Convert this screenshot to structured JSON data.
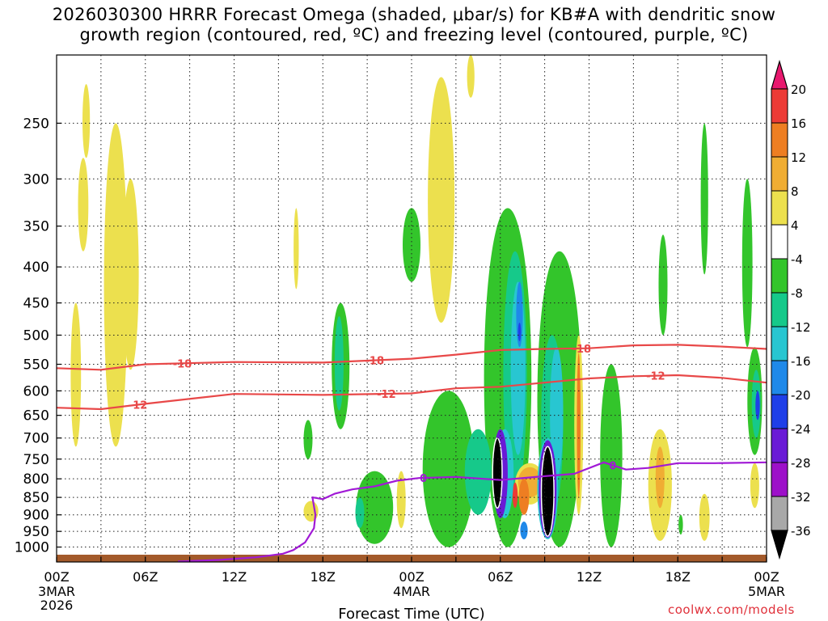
{
  "title_line1": "2026030300 HRRR Forecast Omega (shaded, μbar/s) for KB#A with dendritic snow",
  "title_line2": "growth region (contoured, red, ºC) and freezing level (contoured, purple, ºC)",
  "credit": "coolwx.com/models",
  "chart_data": {
    "type": "heatmap",
    "title": "2026030300 HRRR Forecast Omega (shaded, μbar/s) for KB#A with dendritic snow growth region (contoured, red, ºC) and freezing level (contoured, purple, ºC)",
    "xlabel": "Forecast Time (UTC)",
    "ylabel": "",
    "xlim": [
      0,
      48
    ],
    "ylim": [
      1050,
      200
    ],
    "y_scale": "log-pressure",
    "x_ticks": [
      {
        "hour": 0,
        "label": "00Z",
        "sub1": "3MAR",
        "sub2": "2026"
      },
      {
        "hour": 6,
        "label": "06Z",
        "sub1": "",
        "sub2": ""
      },
      {
        "hour": 12,
        "label": "12Z",
        "sub1": "",
        "sub2": ""
      },
      {
        "hour": 18,
        "label": "18Z",
        "sub1": "",
        "sub2": ""
      },
      {
        "hour": 24,
        "label": "00Z",
        "sub1": "4MAR",
        "sub2": ""
      },
      {
        "hour": 30,
        "label": "06Z",
        "sub1": "",
        "sub2": ""
      },
      {
        "hour": 36,
        "label": "12Z",
        "sub1": "",
        "sub2": ""
      },
      {
        "hour": 42,
        "label": "18Z",
        "sub1": "",
        "sub2": ""
      },
      {
        "hour": 48,
        "label": "00Z",
        "sub1": "5MAR",
        "sub2": ""
      }
    ],
    "y_ticks": [
      250,
      300,
      350,
      400,
      450,
      500,
      550,
      600,
      650,
      700,
      750,
      800,
      850,
      900,
      950,
      1000
    ],
    "grid": true,
    "colorbar": {
      "labels": [
        "20",
        "16",
        "12",
        "8",
        "4",
        "-4",
        "-8",
        "-12",
        "-16",
        "-20",
        "-24",
        "-28",
        "-32",
        "-36"
      ],
      "colors": [
        "#e8186e",
        "#ec3b36",
        "#ee7e22",
        "#f0ad33",
        "#ece04e",
        "#ffffff",
        "#33c52b",
        "#16c98a",
        "#28c6d1",
        "#1f89e9",
        "#1f3fe8",
        "#6a1ad6",
        "#9d10c9",
        "#a8a8a8",
        "#000000"
      ]
    },
    "contours": [
      {
        "name": "-18 °C isotherm",
        "color": "#e84848",
        "label": "-18",
        "label_hours": [
          8.5,
          21.5,
          35.5
        ],
        "points": [
          [
            0,
            557
          ],
          [
            3,
            560
          ],
          [
            6,
            550
          ],
          [
            12,
            546
          ],
          [
            18,
            547
          ],
          [
            24,
            540
          ],
          [
            27,
            533
          ],
          [
            30,
            525
          ],
          [
            33,
            523
          ],
          [
            36,
            522
          ],
          [
            39,
            517
          ],
          [
            42,
            516
          ],
          [
            45,
            519
          ],
          [
            48,
            523
          ]
        ]
      },
      {
        "name": "-12 °C isotherm",
        "color": "#e84848",
        "label": "-12",
        "label_hours": [
          5.5,
          22.3,
          40.5
        ],
        "points": [
          [
            0,
            634
          ],
          [
            3,
            637
          ],
          [
            6,
            626
          ],
          [
            12,
            606
          ],
          [
            18,
            608
          ],
          [
            24,
            605
          ],
          [
            27,
            595
          ],
          [
            30,
            592
          ],
          [
            33,
            584
          ],
          [
            36,
            576
          ],
          [
            39,
            572
          ],
          [
            42,
            570
          ],
          [
            45,
            575
          ],
          [
            48,
            584
          ]
        ]
      },
      {
        "name": "0 °C freezing level",
        "color": "#a11ad6",
        "label": "0",
        "label_hours": [
          24.8,
          37.6
        ],
        "points": [
          [
            8.2,
            1048
          ],
          [
            11,
            1043
          ],
          [
            13.5,
            1034
          ],
          [
            15.3,
            1022
          ],
          [
            16,
            1010
          ],
          [
            16.8,
            985
          ],
          [
            17.4,
            940
          ],
          [
            17.5,
            900
          ],
          [
            17.3,
            850
          ],
          [
            18,
            855
          ],
          [
            18.8,
            840
          ],
          [
            20,
            828
          ],
          [
            21.5,
            820
          ],
          [
            23,
            805
          ],
          [
            24.5,
            798
          ],
          [
            27,
            795
          ],
          [
            30,
            803
          ],
          [
            33,
            793
          ],
          [
            35,
            787
          ],
          [
            37,
            758
          ],
          [
            38.5,
            776
          ],
          [
            40,
            772
          ],
          [
            42,
            760
          ],
          [
            44.5,
            760
          ],
          [
            48,
            758
          ]
        ]
      }
    ],
    "omega_features": [
      {
        "cat": "4",
        "hour": 1.3,
        "p0": 720,
        "p1": 450,
        "w": 0.7
      },
      {
        "cat": "4",
        "hour": 1.8,
        "p0": 380,
        "p1": 280,
        "w": 0.7
      },
      {
        "cat": "4",
        "hour": 4.0,
        "p0": 720,
        "p1": 250,
        "w": 1.6
      },
      {
        "cat": "4",
        "hour": 5.0,
        "p0": 560,
        "p1": 300,
        "w": 1.1
      },
      {
        "cat": "4",
        "hour": 2.0,
        "p0": 280,
        "p1": 220,
        "w": 0.5
      },
      {
        "cat": "4",
        "hour": 16.2,
        "p0": 430,
        "p1": 330,
        "w": 0.35
      },
      {
        "cat": "-4",
        "hour": 17.0,
        "p0": 750,
        "p1": 660,
        "w": 0.6
      },
      {
        "cat": "-4",
        "hour": 19.2,
        "p0": 680,
        "p1": 450,
        "w": 1.2
      },
      {
        "cat": "-8",
        "hour": 19.1,
        "p0": 640,
        "p1": 470,
        "w": 0.6
      },
      {
        "cat": "4",
        "hour": 17.2,
        "p0": 920,
        "p1": 860,
        "w": 1.0
      },
      {
        "cat": "-4",
        "hour": 21.5,
        "p0": 990,
        "p1": 780,
        "w": 2.5
      },
      {
        "cat": "-8",
        "hour": 20.5,
        "p0": 940,
        "p1": 850,
        "w": 0.6
      },
      {
        "cat": "4",
        "hour": 23.3,
        "p0": 940,
        "p1": 780,
        "w": 0.6
      },
      {
        "cat": "-4",
        "hour": 24.0,
        "p0": 420,
        "p1": 330,
        "w": 1.2
      },
      {
        "cat": "4",
        "hour": 26.0,
        "p0": 480,
        "p1": 215,
        "w": 1.8
      },
      {
        "cat": "4",
        "hour": 28.0,
        "p0": 230,
        "p1": 200,
        "w": 0.5
      },
      {
        "cat": "-4",
        "hour": 26.5,
        "p0": 1000,
        "p1": 600,
        "w": 3.5
      },
      {
        "cat": "-4",
        "hour": 30.5,
        "p0": 1000,
        "p1": 330,
        "w": 3.2
      },
      {
        "cat": "-4",
        "hour": 34.0,
        "p0": 1000,
        "p1": 380,
        "w": 3.0
      },
      {
        "cat": "-8",
        "hour": 28.5,
        "p0": 900,
        "p1": 680,
        "w": 1.8
      },
      {
        "cat": "-8",
        "hour": 31.0,
        "p0": 850,
        "p1": 380,
        "w": 1.6
      },
      {
        "cat": "-8",
        "hour": 33.5,
        "p0": 900,
        "p1": 500,
        "w": 1.5
      },
      {
        "cat": "-12",
        "hour": 31.2,
        "p0": 740,
        "p1": 420,
        "w": 1.0
      },
      {
        "cat": "-12",
        "hour": 33.8,
        "p0": 800,
        "p1": 520,
        "w": 0.9
      },
      {
        "cat": "-16",
        "hour": 31.3,
        "p0": 520,
        "p1": 420,
        "w": 0.45
      },
      {
        "cat": "-20",
        "hour": 31.3,
        "p0": 510,
        "p1": 480,
        "w": 0.2
      },
      {
        "cat": "4",
        "hour": 32.0,
        "p0": 870,
        "p1": 760,
        "w": 2.0
      },
      {
        "cat": "8",
        "hour": 32.0,
        "p0": 850,
        "p1": 770,
        "w": 1.6
      },
      {
        "cat": "12",
        "hour": 31.6,
        "p0": 900,
        "p1": 800,
        "w": 0.7
      },
      {
        "cat": "16",
        "hour": 31.0,
        "p0": 880,
        "p1": 810,
        "w": 0.35
      },
      {
        "cat": "-12",
        "hour": 30.3,
        "p0": 910,
        "p1": 680,
        "w": 1.2
      },
      {
        "cat": "-24",
        "hour": 30.0,
        "p0": 910,
        "p1": 680,
        "w": 1.0
      },
      {
        "cat": "-36",
        "hour": 29.8,
        "p0": 880,
        "p1": 700,
        "w": 0.65
      },
      {
        "cat": "-12",
        "hour": 33.2,
        "p0": 975,
        "p1": 700,
        "w": 1.4
      },
      {
        "cat": "-24",
        "hour": 33.2,
        "p0": 970,
        "p1": 705,
        "w": 1.2
      },
      {
        "cat": "-36",
        "hour": 33.2,
        "p0": 965,
        "p1": 720,
        "w": 0.85
      },
      {
        "cat": "-16",
        "hour": 31.6,
        "p0": 975,
        "p1": 920,
        "w": 0.5
      },
      {
        "cat": "4",
        "hour": 35.3,
        "p0": 900,
        "p1": 500,
        "w": 0.6
      },
      {
        "cat": "12",
        "hour": 35.3,
        "p0": 850,
        "p1": 530,
        "w": 0.25
      },
      {
        "cat": "-4",
        "hour": 37.5,
        "p0": 1000,
        "p1": 550,
        "w": 1.5
      },
      {
        "cat": "4",
        "hour": 40.8,
        "p0": 980,
        "p1": 680,
        "w": 1.6
      },
      {
        "cat": "8",
        "hour": 40.8,
        "p0": 880,
        "p1": 720,
        "w": 0.6
      },
      {
        "cat": "-4",
        "hour": 41.0,
        "p0": 500,
        "p1": 360,
        "w": 0.6
      },
      {
        "cat": "4",
        "hour": 43.8,
        "p0": 980,
        "p1": 840,
        "w": 0.7
      },
      {
        "cat": "-4",
        "hour": 43.8,
        "p0": 410,
        "p1": 250,
        "w": 0.5
      },
      {
        "cat": "-4",
        "hour": 46.7,
        "p0": 520,
        "p1": 300,
        "w": 0.7
      },
      {
        "cat": "-4",
        "hour": 47.2,
        "p0": 740,
        "p1": 520,
        "w": 1.0
      },
      {
        "cat": "-8",
        "hour": 47.3,
        "p0": 700,
        "p1": 560,
        "w": 0.6
      },
      {
        "cat": "-20",
        "hour": 47.4,
        "p0": 660,
        "p1": 600,
        "w": 0.3
      },
      {
        "cat": "4",
        "hour": 47.2,
        "p0": 880,
        "p1": 760,
        "w": 0.6
      },
      {
        "cat": "-4",
        "hour": 42.2,
        "p0": 960,
        "p1": 900,
        "w": 0.3
      }
    ]
  }
}
